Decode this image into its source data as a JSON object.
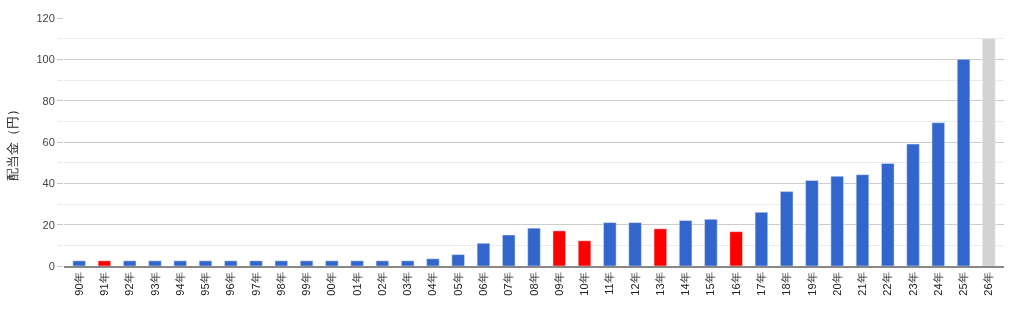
{
  "chart_data": {
    "type": "bar",
    "ylabel": "配当金（円）",
    "categories": [
      "90年",
      "91年",
      "92年",
      "93年",
      "94年",
      "95年",
      "96年",
      "97年",
      "98年",
      "99年",
      "00年",
      "01年",
      "02年",
      "03年",
      "04年",
      "05年",
      "06年",
      "07年",
      "08年",
      "09年",
      "10年",
      "11年",
      "12年",
      "13年",
      "14年",
      "15年",
      "16年",
      "17年",
      "18年",
      "19年",
      "20年",
      "21年",
      "22年",
      "23年",
      "24年",
      "25年",
      "26年"
    ],
    "values": [
      2.5,
      2.5,
      2.5,
      2.5,
      2.5,
      2.5,
      2.5,
      2.5,
      2.5,
      2.5,
      2.5,
      2.5,
      2.5,
      2.5,
      3.5,
      5.5,
      11,
      15,
      18.3,
      17,
      12.2,
      21,
      21,
      18,
      22,
      22.6,
      16.6,
      26,
      36,
      41.4,
      43.4,
      44.2,
      49.6,
      59,
      69.3,
      100,
      110
    ],
    "colors": [
      "#3366cc",
      "#ff0000",
      "#3366cc",
      "#3366cc",
      "#3366cc",
      "#3366cc",
      "#3366cc",
      "#3366cc",
      "#3366cc",
      "#3366cc",
      "#3366cc",
      "#3366cc",
      "#3366cc",
      "#3366cc",
      "#3366cc",
      "#3366cc",
      "#3366cc",
      "#3366cc",
      "#3366cc",
      "#ff0000",
      "#ff0000",
      "#3366cc",
      "#3366cc",
      "#ff0000",
      "#3366cc",
      "#3366cc",
      "#ff0000",
      "#3366cc",
      "#3366cc",
      "#3366cc",
      "#3366cc",
      "#3366cc",
      "#3366cc",
      "#3366cc",
      "#3366cc",
      "#3366cc",
      "#d3d3d3"
    ],
    "ylim": [
      0,
      120
    ],
    "yticks": [
      0,
      {
        "value": 10,
        "label": null
      },
      20,
      {
        "value": 30,
        "label": null
      },
      40,
      {
        "value": 50,
        "label": null
      },
      60,
      {
        "value": 70,
        "label": null
      },
      80,
      {
        "value": 90,
        "label": null
      },
      100,
      {
        "value": 110,
        "label": null
      },
      120
    ],
    "grid": "y"
  }
}
